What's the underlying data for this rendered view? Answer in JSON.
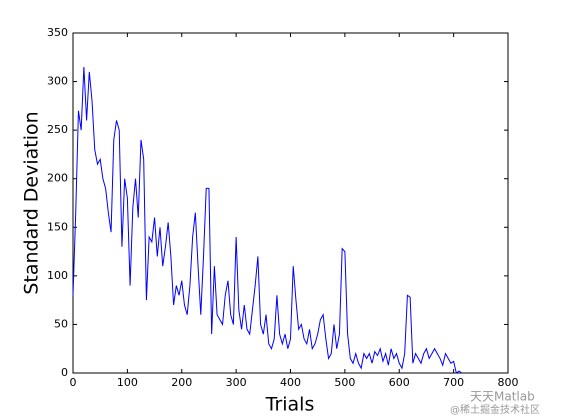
{
  "chart_data": {
    "type": "line",
    "xlabel": "Trials",
    "ylabel": "Standard Deviation",
    "x": [
      0,
      5,
      10,
      15,
      20,
      25,
      30,
      35,
      40,
      45,
      50,
      55,
      60,
      65,
      70,
      75,
      80,
      85,
      90,
      95,
      100,
      105,
      110,
      115,
      120,
      125,
      130,
      135,
      140,
      145,
      150,
      155,
      160,
      165,
      170,
      175,
      180,
      185,
      190,
      195,
      200,
      205,
      210,
      215,
      220,
      225,
      230,
      235,
      240,
      245,
      250,
      255,
      260,
      265,
      270,
      275,
      280,
      285,
      290,
      295,
      300,
      305,
      310,
      315,
      320,
      325,
      330,
      335,
      340,
      345,
      350,
      355,
      360,
      365,
      370,
      375,
      380,
      385,
      390,
      395,
      400,
      405,
      410,
      415,
      420,
      425,
      430,
      435,
      440,
      445,
      450,
      455,
      460,
      465,
      470,
      475,
      480,
      485,
      490,
      495,
      500,
      505,
      510,
      515,
      520,
      525,
      530,
      535,
      540,
      545,
      550,
      555,
      560,
      565,
      570,
      575,
      580,
      585,
      590,
      595,
      600,
      605,
      610,
      615,
      620,
      625,
      630,
      635,
      640,
      645,
      650,
      655,
      660,
      665,
      670,
      675,
      680,
      685,
      690,
      695,
      700,
      705,
      710,
      715
    ],
    "series": [
      {
        "name": "Standard Deviation",
        "color": "#0000ff",
        "values": [
          80,
          165,
          270,
          250,
          315,
          260,
          310,
          280,
          230,
          215,
          220,
          200,
          190,
          165,
          145,
          240,
          260,
          250,
          130,
          200,
          180,
          90,
          170,
          200,
          160,
          240,
          220,
          75,
          140,
          135,
          160,
          120,
          150,
          110,
          130,
          155,
          120,
          70,
          90,
          80,
          95,
          70,
          60,
          90,
          140,
          165,
          110,
          60,
          120,
          190,
          190,
          40,
          110,
          60,
          55,
          50,
          80,
          95,
          60,
          50,
          140,
          65,
          45,
          70,
          45,
          40,
          65,
          90,
          120,
          50,
          40,
          60,
          30,
          25,
          35,
          80,
          40,
          30,
          40,
          25,
          35,
          110,
          75,
          45,
          50,
          35,
          30,
          45,
          25,
          30,
          40,
          55,
          60,
          35,
          15,
          20,
          50,
          25,
          40,
          128,
          125,
          40,
          15,
          10,
          20,
          10,
          5,
          20,
          15,
          20,
          10,
          22,
          18,
          25,
          12,
          20,
          8,
          25,
          15,
          20,
          10,
          5,
          20,
          80,
          78,
          10,
          20,
          15,
          10,
          20,
          25,
          15,
          20,
          25,
          20,
          15,
          8,
          20,
          15,
          10,
          12,
          0,
          2,
          0
        ]
      }
    ],
    "xlim": [
      0,
      800
    ],
    "xticks": [
      0,
      100,
      200,
      300,
      400,
      500,
      600,
      700,
      800
    ],
    "ylim": [
      0,
      350
    ],
    "yticks": [
      0,
      50,
      100,
      150,
      200,
      250,
      300,
      350
    ],
    "grid": false,
    "watermark": [
      "天天Matlab",
      "@稀土掘金技术社区"
    ]
  }
}
